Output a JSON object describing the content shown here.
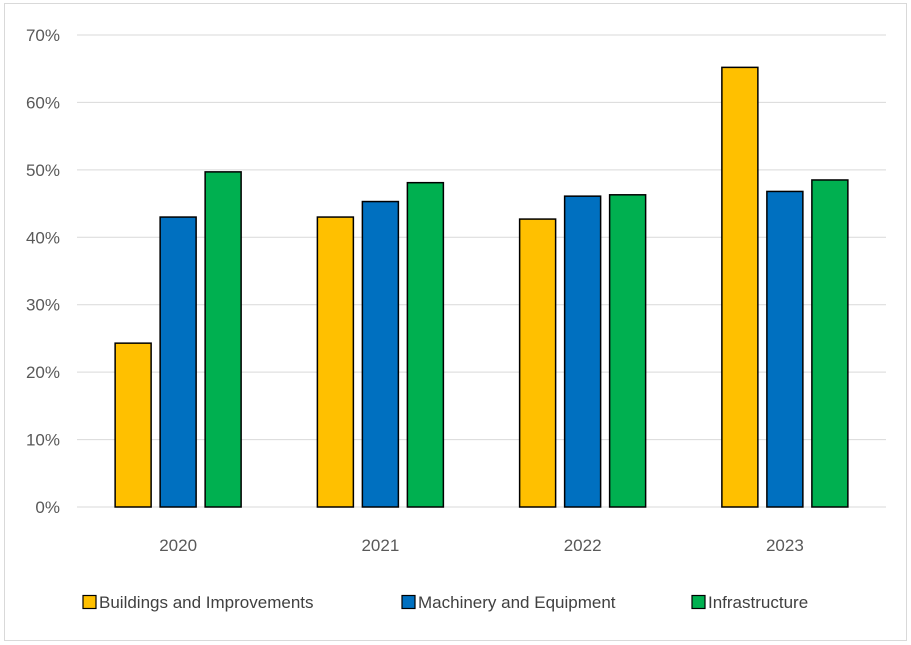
{
  "chart_data": {
    "type": "bar",
    "title": "",
    "xlabel": "",
    "ylabel": "",
    "categories": [
      "2020",
      "2021",
      "2022",
      "2023"
    ],
    "ylim": [
      0,
      70
    ],
    "yticks": [
      "0%",
      "10%",
      "20%",
      "30%",
      "40%",
      "50%",
      "60%",
      "70%"
    ],
    "grid": true,
    "legend_position": "bottom",
    "series": [
      {
        "name": "Buildings and Improvements",
        "color": "#FFC000",
        "values": [
          24.3,
          43.0,
          42.7,
          65.2
        ]
      },
      {
        "name": "Machinery and Equipment",
        "color": "#0070C0",
        "values": [
          43.0,
          45.3,
          46.1,
          46.8
        ]
      },
      {
        "name": "Infrastructure",
        "color": "#00B050",
        "values": [
          49.7,
          48.1,
          46.3,
          48.5
        ]
      }
    ]
  }
}
